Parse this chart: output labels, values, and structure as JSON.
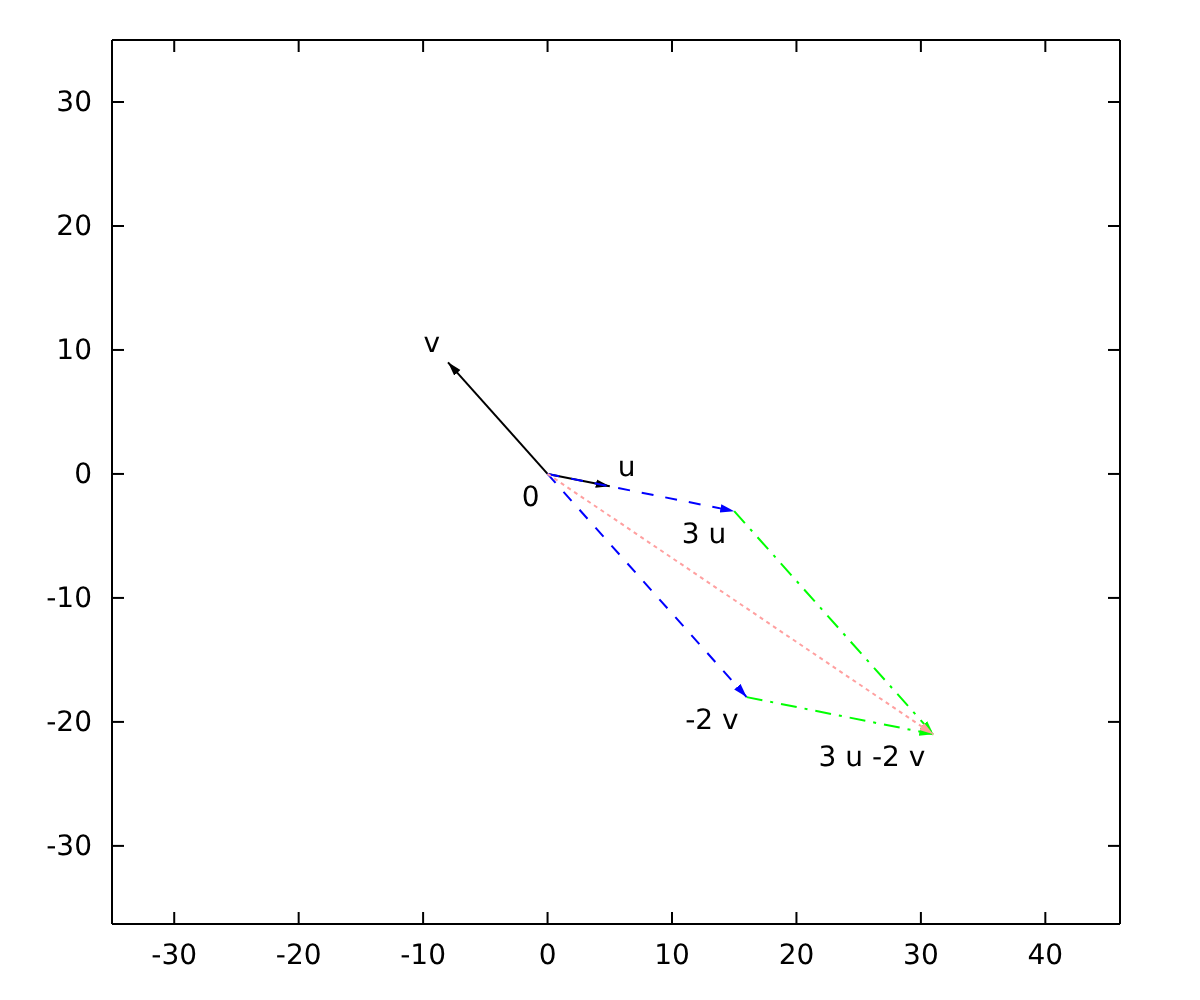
{
  "chart_data": {
    "type": "line",
    "xlim": [
      -35,
      46
    ],
    "ylim": [
      -36.3,
      35
    ],
    "xticks": [
      -30,
      -20,
      -10,
      0,
      10,
      20,
      30,
      40
    ],
    "yticks": [
      -30,
      -20,
      -10,
      0,
      10,
      20,
      30
    ],
    "grid": false,
    "marker": "none",
    "series": [
      {
        "color": "#000000",
        "x": [
          0,
          5
        ],
        "values": [
          0,
          -1
        ],
        "line_style": "solid"
      },
      {
        "color": "#000000",
        "x": [
          0,
          -8
        ],
        "values": [
          0,
          9
        ],
        "line_style": "solid"
      },
      {
        "color": "#0000ff",
        "x": [
          0,
          15
        ],
        "values": [
          0,
          -3
        ],
        "line_style": "dashed"
      },
      {
        "color": "#0000ff",
        "x": [
          0,
          16
        ],
        "values": [
          0,
          -18
        ],
        "line_style": "dashed"
      },
      {
        "color": "#00ff00",
        "x": [
          15,
          31
        ],
        "values": [
          -3,
          -21
        ],
        "line_style": "dashdot"
      },
      {
        "color": "#00ff00",
        "x": [
          16,
          31
        ],
        "values": [
          -18,
          -21
        ],
        "line_style": "dashdot"
      },
      {
        "color": "#ffa0a0",
        "x": [
          0,
          31
        ],
        "values": [
          0,
          -21
        ],
        "line_style": "dotted"
      }
    ],
    "annotations": [
      {
        "text": "0",
        "x": 0,
        "y": 0
      },
      {
        "text": "u",
        "x": 5,
        "y": -1
      },
      {
        "text": "v",
        "x": -8,
        "y": 9
      },
      {
        "text": "3 u",
        "x": 15,
        "y": -3
      },
      {
        "text": "-2 v",
        "x": 16,
        "y": -18
      },
      {
        "text": "3 u -2 v",
        "x": 31,
        "y": -21
      }
    ]
  }
}
